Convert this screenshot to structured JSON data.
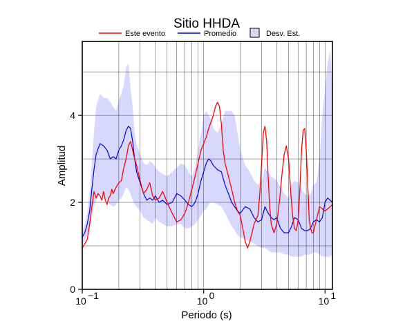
{
  "chart_data": {
    "type": "line",
    "title": "Sitio HHDA",
    "xlabel": "Periodo (s)",
    "ylabel": "Amplitud",
    "xscale": "log",
    "xlim": [
      0.1,
      11.5
    ],
    "ylim": [
      0,
      5.7
    ],
    "x_ticks": [
      {
        "value": 0.1,
        "base": "10",
        "exp": "−1"
      },
      {
        "value": 1,
        "base": "10",
        "exp": "0"
      },
      {
        "value": 10,
        "base": "10",
        "exp": "1"
      }
    ],
    "y_ticks": [
      {
        "value": 0,
        "label": "0"
      },
      {
        "value": 2,
        "label": "2"
      },
      {
        "value": 4,
        "label": "4"
      }
    ],
    "grid": true,
    "legend": "top",
    "legend_entries": [
      {
        "label": "Este evento",
        "kind": "line",
        "color": "#ff0000"
      },
      {
        "label": "Promedio",
        "kind": "line",
        "color": "#0000dd"
      },
      {
        "label": "Desv. Est.",
        "kind": "box",
        "color": "#d8d8ff"
      }
    ],
    "colors": {
      "evento": "#ff0000",
      "promedio": "#0000dd",
      "band": "#d8d8ff"
    },
    "series": [
      {
        "name": "Este evento",
        "x": [
          0.1,
          0.105,
          0.11,
          0.115,
          0.12,
          0.125,
          0.13,
          0.135,
          0.14,
          0.145,
          0.15,
          0.155,
          0.16,
          0.165,
          0.17,
          0.175,
          0.18,
          0.19,
          0.2,
          0.21,
          0.22,
          0.23,
          0.24,
          0.25,
          0.26,
          0.27,
          0.28,
          0.3,
          0.32,
          0.34,
          0.36,
          0.38,
          0.4,
          0.43,
          0.46,
          0.5,
          0.55,
          0.6,
          0.65,
          0.7,
          0.75,
          0.8,
          0.85,
          0.9,
          0.95,
          1.0,
          1.05,
          1.1,
          1.15,
          1.2,
          1.25,
          1.3,
          1.35,
          1.4,
          1.45,
          1.5,
          1.6,
          1.7,
          1.8,
          1.9,
          2.0,
          2.1,
          2.2,
          2.3,
          2.4,
          2.5,
          2.6,
          2.7,
          2.8,
          2.9,
          3.0,
          3.1,
          3.2,
          3.3,
          3.4,
          3.5,
          3.6,
          3.8,
          4.0,
          4.2,
          4.4,
          4.6,
          4.8,
          5.0,
          5.2,
          5.4,
          5.6,
          5.8,
          6.0,
          6.2,
          6.4,
          6.6,
          6.8,
          7.0,
          7.2,
          7.4,
          7.6,
          7.8,
          8.0,
          8.5,
          9.0,
          9.5,
          10.0,
          10.5,
          11.0,
          11.5
        ],
        "y": [
          0.95,
          1.05,
          1.15,
          1.5,
          1.9,
          2.25,
          2.1,
          2.2,
          2.15,
          2.05,
          2.25,
          2.05,
          1.95,
          2.1,
          2.15,
          2.3,
          2.2,
          2.35,
          2.45,
          2.5,
          2.8,
          3.0,
          3.3,
          3.4,
          3.2,
          3.0,
          2.85,
          2.5,
          2.2,
          2.3,
          2.45,
          2.15,
          2.05,
          2.1,
          2.25,
          2.0,
          1.75,
          1.55,
          1.6,
          1.75,
          2.0,
          2.3,
          2.6,
          2.9,
          3.2,
          3.35,
          3.5,
          3.7,
          3.85,
          4.0,
          4.2,
          4.3,
          4.2,
          3.8,
          3.2,
          2.9,
          2.6,
          2.3,
          2.0,
          1.8,
          1.7,
          1.4,
          1.1,
          0.95,
          1.1,
          1.3,
          1.5,
          1.6,
          1.7,
          2.2,
          2.9,
          3.6,
          3.75,
          3.4,
          2.6,
          1.9,
          1.5,
          1.3,
          1.5,
          2.0,
          2.6,
          3.1,
          3.3,
          3.0,
          2.3,
          1.7,
          1.4,
          1.35,
          1.6,
          2.3,
          3.2,
          3.65,
          3.7,
          3.2,
          2.4,
          1.6,
          1.4,
          1.3,
          1.3,
          1.6,
          1.9,
          1.85,
          1.8,
          1.85,
          1.9,
          1.95
        ]
      },
      {
        "name": "Promedio",
        "x": [
          0.1,
          0.105,
          0.11,
          0.115,
          0.12,
          0.125,
          0.13,
          0.14,
          0.15,
          0.16,
          0.17,
          0.18,
          0.19,
          0.2,
          0.21,
          0.22,
          0.23,
          0.24,
          0.25,
          0.26,
          0.27,
          0.28,
          0.3,
          0.32,
          0.34,
          0.36,
          0.38,
          0.4,
          0.43,
          0.46,
          0.5,
          0.55,
          0.6,
          0.65,
          0.7,
          0.75,
          0.8,
          0.85,
          0.9,
          0.95,
          1.0,
          1.05,
          1.1,
          1.15,
          1.2,
          1.3,
          1.4,
          1.5,
          1.6,
          1.7,
          1.8,
          1.9,
          2.0,
          2.2,
          2.4,
          2.6,
          2.8,
          3.0,
          3.2,
          3.4,
          3.6,
          3.8,
          4.0,
          4.3,
          4.6,
          5.0,
          5.3,
          5.6,
          6.0,
          6.4,
          6.8,
          7.2,
          7.6,
          8.0,
          8.5,
          9.0,
          9.5,
          10.0,
          10.5,
          11.0,
          11.5
        ],
        "y": [
          1.2,
          1.3,
          1.5,
          1.8,
          2.3,
          2.75,
          3.1,
          3.35,
          3.3,
          3.2,
          3.0,
          3.05,
          3.0,
          3.2,
          3.3,
          3.45,
          3.65,
          3.75,
          3.7,
          3.4,
          3.0,
          2.7,
          2.45,
          2.2,
          2.05,
          2.1,
          2.05,
          2.15,
          2.0,
          2.05,
          1.95,
          2.0,
          2.2,
          2.15,
          2.05,
          1.95,
          1.9,
          2.0,
          2.2,
          2.5,
          2.7,
          2.9,
          3.0,
          2.95,
          2.85,
          2.75,
          2.7,
          2.4,
          2.2,
          2.0,
          1.9,
          1.8,
          1.75,
          1.9,
          1.85,
          1.65,
          1.55,
          1.6,
          1.9,
          1.75,
          1.65,
          1.6,
          1.65,
          1.4,
          1.3,
          1.3,
          1.45,
          1.65,
          1.6,
          1.4,
          1.35,
          1.35,
          1.4,
          1.55,
          1.6,
          1.55,
          1.65,
          2.0,
          2.1,
          2.05,
          2.0
        ]
      },
      {
        "name": "Desv. Est.",
        "x": [
          0.1,
          0.105,
          0.11,
          0.115,
          0.12,
          0.125,
          0.13,
          0.14,
          0.15,
          0.16,
          0.17,
          0.18,
          0.19,
          0.2,
          0.21,
          0.22,
          0.23,
          0.24,
          0.25,
          0.26,
          0.27,
          0.28,
          0.3,
          0.32,
          0.34,
          0.36,
          0.38,
          0.4,
          0.43,
          0.46,
          0.5,
          0.55,
          0.6,
          0.65,
          0.7,
          0.75,
          0.8,
          0.85,
          0.9,
          0.95,
          1.0,
          1.05,
          1.1,
          1.15,
          1.2,
          1.3,
          1.4,
          1.5,
          1.6,
          1.7,
          1.8,
          1.9,
          2.0,
          2.2,
          2.4,
          2.6,
          2.8,
          3.0,
          3.2,
          3.4,
          3.6,
          3.8,
          4.0,
          4.3,
          4.6,
          5.0,
          5.3,
          5.6,
          6.0,
          6.4,
          6.8,
          7.2,
          7.6,
          8.0,
          8.5,
          9.0,
          9.5,
          10.0,
          10.5,
          11.0,
          11.5
        ],
        "upper": [
          1.35,
          1.5,
          1.75,
          2.2,
          2.9,
          3.6,
          4.2,
          4.5,
          4.4,
          4.4,
          4.3,
          4.2,
          4.1,
          4.35,
          4.5,
          4.7,
          5.1,
          5.2,
          4.6,
          4.2,
          3.6,
          3.35,
          3.1,
          2.9,
          2.85,
          2.95,
          2.9,
          2.8,
          2.7,
          2.65,
          2.6,
          2.7,
          2.8,
          2.9,
          2.85,
          2.7,
          2.6,
          2.8,
          3.2,
          3.6,
          4.0,
          4.1,
          4.0,
          3.9,
          3.7,
          3.6,
          3.8,
          4.1,
          4.1,
          4.1,
          4.0,
          3.6,
          3.2,
          2.85,
          2.7,
          2.5,
          2.4,
          2.5,
          2.8,
          2.7,
          2.6,
          2.55,
          2.5,
          2.35,
          2.2,
          2.1,
          2.4,
          2.5,
          2.45,
          2.3,
          2.2,
          2.15,
          2.2,
          2.4,
          2.45,
          3.0,
          4.0,
          4.6,
          5.2,
          5.5,
          4.5
        ],
        "lower": [
          1.05,
          1.1,
          1.25,
          1.4,
          1.65,
          1.9,
          2.05,
          2.2,
          2.15,
          2.05,
          1.95,
          1.9,
          1.95,
          2.05,
          2.1,
          2.2,
          2.35,
          2.3,
          2.2,
          2.05,
          1.95,
          1.9,
          1.8,
          1.65,
          1.6,
          1.55,
          1.5,
          1.65,
          1.55,
          1.5,
          1.45,
          1.45,
          1.5,
          1.5,
          1.4,
          1.4,
          1.45,
          1.5,
          1.6,
          1.7,
          1.8,
          1.85,
          1.95,
          2.0,
          2.0,
          1.95,
          1.9,
          1.75,
          1.6,
          1.45,
          1.35,
          1.25,
          1.2,
          1.15,
          1.1,
          1.05,
          1.0,
          0.95,
          0.95,
          0.9,
          0.85,
          0.85,
          0.85,
          0.85,
          0.8,
          0.8,
          0.75,
          0.75,
          0.75,
          0.75,
          0.8,
          0.8,
          0.8,
          0.85,
          0.85,
          0.8,
          0.75,
          0.75,
          0.75,
          0.75,
          0.8
        ]
      }
    ]
  }
}
